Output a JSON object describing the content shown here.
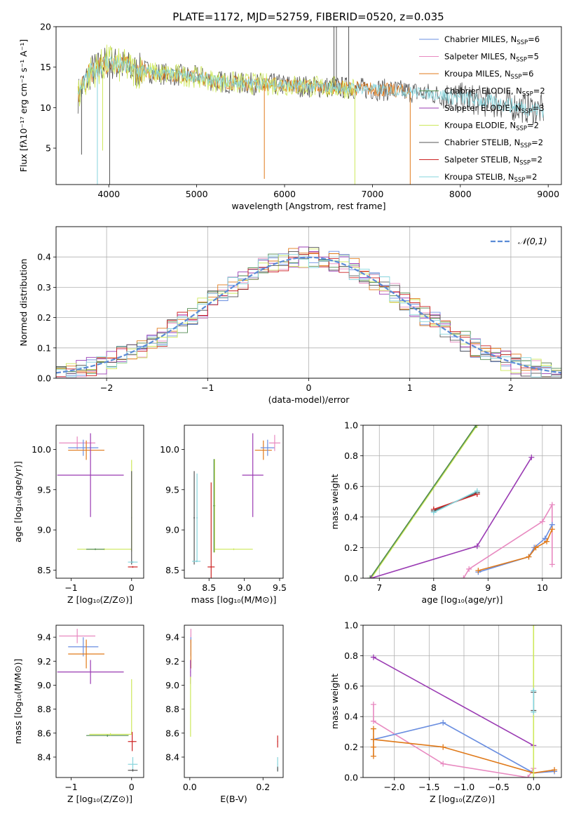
{
  "figure_title": "PLATE=1172, MJD=52759, FIBERID=0520, z=0.035",
  "colors": {
    "Chabrier MILES": "#6a8ee0",
    "Salpeter MILES": "#e889c0",
    "Kroupa MILES": "#e07a1a",
    "Chabrier ELODIE": "#4f8a4f",
    "Salpeter ELODIE": "#9a3bb3",
    "Kroupa ELODIE": "#cde85a",
    "Chabrier STELIB": "#555555",
    "Salpeter STELIB": "#cc2222",
    "Kroupa STELIB": "#86d4dc",
    "normal_curve": "#5b8bd6"
  },
  "chart_data": [
    {
      "id": "spectrum",
      "type": "line",
      "title": "PLATE=1172, MJD=52759, FIBERID=0520, z=0.035",
      "xlabel": "wavelength [Angstrom, rest frame]",
      "ylabel": "Flux [fλ10⁻¹⁷ erg cm⁻² s⁻¹ A⁻¹]",
      "xlim": [
        3400,
        9150
      ],
      "ylim": [
        0.5,
        20
      ],
      "xticks": [
        4000,
        5000,
        6000,
        7000,
        8000,
        9000
      ],
      "yticks": [
        5,
        10,
        15,
        20
      ],
      "legend_position": "top-right",
      "legend": [
        {
          "model": "Chabrier MILES",
          "label": "Chabrier MILES, N",
          "sub": "SSP",
          "tail": "=6"
        },
        {
          "model": "Salpeter MILES",
          "label": "Salpeter MILES, N",
          "sub": "SSP",
          "tail": "=5"
        },
        {
          "model": "Kroupa MILES",
          "label": "Kroupa MILES, N",
          "sub": "SSP",
          "tail": "=6"
        },
        {
          "model": "Chabrier ELODIE",
          "label": "Chabrier ELODIE, N",
          "sub": "SSP",
          "tail": "=2"
        },
        {
          "model": "Salpeter ELODIE",
          "label": "Salpeter ELODIE, N",
          "sub": "SSP",
          "tail": "=3"
        },
        {
          "model": "Kroupa ELODIE",
          "label": "Kroupa ELODIE, N",
          "sub": "SSP",
          "tail": "=2"
        },
        {
          "model": "Chabrier STELIB",
          "label": "Chabrier STELIB, N",
          "sub": "SSP",
          "tail": "=2"
        },
        {
          "model": "Salpeter STELIB",
          "label": "Salpeter STELIB, N",
          "sub": "SSP",
          "tail": "=2"
        },
        {
          "model": "Kroupa STELIB",
          "label": "Kroupa STELIB, N",
          "sub": "SSP",
          "tail": "=2"
        }
      ],
      "continuum": [
        [
          3650,
          11.5
        ],
        [
          3700,
          12.5
        ],
        [
          3800,
          14.5
        ],
        [
          3900,
          15.0
        ],
        [
          4000,
          15.8
        ],
        [
          4100,
          15.2
        ],
        [
          4200,
          15.0
        ],
        [
          4300,
          14.5
        ],
        [
          4400,
          14.6
        ],
        [
          4500,
          14.3
        ],
        [
          4600,
          14.2
        ],
        [
          4800,
          14.0
        ],
        [
          5000,
          13.8
        ],
        [
          5200,
          13.3
        ],
        [
          5500,
          13.0
        ],
        [
          5800,
          12.9
        ],
        [
          6000,
          12.8
        ],
        [
          6300,
          12.6
        ],
        [
          6600,
          12.5
        ],
        [
          7000,
          12.3
        ],
        [
          7400,
          12.0
        ],
        [
          7800,
          11.5
        ],
        [
          8200,
          10.9
        ],
        [
          8500,
          10.4
        ],
        [
          8900,
          9.7
        ]
      ],
      "spectrum_traces": [
        {
          "model": "Chabrier STELIB",
          "x_start": 3650,
          "x_end": 8950,
          "noise": 1.4
        },
        {
          "model": "Kroupa MILES",
          "x_start": 3650,
          "x_end": 7420,
          "noise": 0.9
        },
        {
          "model": "Kroupa ELODIE",
          "x_start": 3650,
          "x_end": 6800,
          "noise": 1.4
        },
        {
          "model": "Kroupa STELIB",
          "x_start": 3650,
          "x_end": 8950,
          "noise": 0.7
        }
      ],
      "absorption_features": [
        {
          "model": "Kroupa STELIB",
          "x": 3870,
          "y": 0.5
        },
        {
          "model": "Kroupa ELODIE",
          "x": 3930,
          "y": 4.7
        },
        {
          "model": "Chabrier STELIB",
          "x": 4010,
          "y": 0.5
        },
        {
          "model": "Kroupa MILES",
          "x": 5770,
          "y": 1.2
        },
        {
          "model": "Kroupa MILES",
          "x": 7430,
          "y": 0.5
        },
        {
          "model": "Kroupa ELODIE",
          "x": 6800,
          "y": 0.5
        },
        {
          "model": "Chabrier STELIB",
          "x": 3690,
          "y": 4.2
        }
      ],
      "emission_features": [
        {
          "model": "Chabrier STELIB",
          "x": 6562,
          "y": 20
        },
        {
          "model": "Chabrier STELIB",
          "x": 6590,
          "y": 20
        },
        {
          "model": "Chabrier STELIB",
          "x": 6730,
          "y": 20
        }
      ]
    },
    {
      "id": "residuals",
      "type": "line",
      "xlabel": "(data-model)/error",
      "ylabel": "Normed distribution",
      "xlim": [
        -2.5,
        2.5
      ],
      "ylim": [
        0,
        0.5
      ],
      "xticks": [
        -2,
        -1,
        0,
        1,
        2
      ],
      "yticks": [
        0.0,
        0.1,
        0.2,
        0.3,
        0.4
      ],
      "grid": true,
      "legend_position": "top-right",
      "legend_label": "𝒩(0,1)",
      "bin_width": 0.1,
      "bin_start": -2.5,
      "sigma": 1,
      "hist_jitter": 0.035
    },
    {
      "id": "age_vs_Z",
      "type": "scatter",
      "xlabel": "Z [log₁₀(Z/Z⊙)]",
      "ylabel": "age  [log₁₀(age/yr)]",
      "xlim": [
        -1.25,
        0.2
      ],
      "ylim": [
        8.4,
        10.3
      ],
      "xticks": [
        -1,
        0
      ],
      "yticks": [
        8.5,
        9.0,
        9.5,
        10.0
      ],
      "points": [
        {
          "model": "Salpeter MILES",
          "x": -0.9,
          "y": 10.08,
          "xerr": 0.3,
          "yerr": 0.08
        },
        {
          "model": "Chabrier MILES",
          "x": -0.8,
          "y": 10.02,
          "xerr": 0.25,
          "yerr": 0.1
        },
        {
          "model": "Kroupa MILES",
          "x": -0.75,
          "y": 9.99,
          "xerr": 0.3,
          "yerr": 0.12
        },
        {
          "model": "Salpeter ELODIE",
          "x": -0.68,
          "y": 9.68,
          "xerr": 0.55,
          "yerr": 0.52
        },
        {
          "model": "Kroupa ELODIE",
          "x": -0.45,
          "y": 8.76,
          "xerr": 0.45,
          "yerr": 0.01
        },
        {
          "model": "Chabrier ELODIE",
          "x": -0.6,
          "y": 8.76,
          "xerr": 0.15,
          "yerr": 0.01
        },
        {
          "model": "Kroupa ELODIE",
          "x": 0.0,
          "y": 9.3,
          "xerr": 0.005,
          "yerr": 0.57
        },
        {
          "model": "Chabrier STELIB",
          "x": 0.0,
          "y": 9.15,
          "xerr": 0.005,
          "yerr": 0.58
        },
        {
          "model": "Kroupa STELIB",
          "x": 0.02,
          "y": 8.6,
          "xerr": 0.08,
          "yerr": 0.01
        },
        {
          "model": "Salpeter STELIB",
          "x": 0.02,
          "y": 8.54,
          "xerr": 0.08,
          "yerr": 0.01
        }
      ]
    },
    {
      "id": "age_vs_mass",
      "type": "scatter",
      "xlabel": "mass [log₁₀(M/M⊙)]",
      "ylabel": "",
      "xlim": [
        8.15,
        9.55
      ],
      "ylim": [
        8.4,
        10.3
      ],
      "xticks": [
        8.5,
        9.0,
        9.5
      ],
      "yticks": [
        8.5,
        9.0,
        9.5,
        10.0
      ],
      "points": [
        {
          "model": "Kroupa STELIB",
          "x": 8.33,
          "y": 9.15,
          "xerr": 0.01,
          "yerr": 0.55
        },
        {
          "model": "Chabrier STELIB",
          "x": 8.29,
          "y": 9.15,
          "xerr": 0.01,
          "yerr": 0.58
        },
        {
          "model": "Kroupa STELIB",
          "x": 8.32,
          "y": 8.61,
          "xerr": 0.06,
          "yerr": 0.01
        },
        {
          "model": "Salpeter STELIB",
          "x": 8.53,
          "y": 8.54,
          "xerr": 0.05,
          "yerr": 1.05
        },
        {
          "model": "Kroupa ELODIE",
          "x": 8.58,
          "y": 9.3,
          "xerr": 0.01,
          "yerr": 0.58
        },
        {
          "model": "Chabrier ELODIE",
          "x": 8.57,
          "y": 9.3,
          "xerr": 0.01,
          "yerr": 0.58
        },
        {
          "model": "Kroupa ELODIE",
          "x": 8.85,
          "y": 8.76,
          "xerr": 0.27,
          "yerr": 0.01
        },
        {
          "model": "Salpeter ELODIE",
          "x": 9.12,
          "y": 9.68,
          "xerr": 0.15,
          "yerr": 0.52
        },
        {
          "model": "Kroupa MILES",
          "x": 9.27,
          "y": 9.99,
          "xerr": 0.12,
          "yerr": 0.12
        },
        {
          "model": "Chabrier MILES",
          "x": 9.33,
          "y": 10.02,
          "xerr": 0.1,
          "yerr": 0.1
        },
        {
          "model": "Salpeter MILES",
          "x": 9.43,
          "y": 10.08,
          "xerr": 0.08,
          "yerr": 0.1
        }
      ]
    },
    {
      "id": "weight_vs_age",
      "type": "line",
      "xlabel": "age  [log₁₀(age/yr)]",
      "ylabel": "mass weight",
      "xlim": [
        6.7,
        10.35
      ],
      "ylim": [
        0,
        1
      ],
      "xticks": [
        7,
        8,
        9,
        10
      ],
      "yticks": [
        0.0,
        0.2,
        0.4,
        0.6,
        0.8,
        1.0
      ],
      "grid": true,
      "series": [
        {
          "model": "Kroupa ELODIE",
          "x": [
            6.85,
            8.8
          ],
          "y": [
            0.0,
            1.0
          ]
        },
        {
          "model": "Chabrier ELODIE",
          "x": [
            6.83,
            8.78
          ],
          "y": [
            0.0,
            1.0
          ]
        },
        {
          "model": "Salpeter ELODIE",
          "x": [
            6.85,
            8.8,
            9.8
          ],
          "y": [
            0.0,
            0.21,
            0.79
          ]
        },
        {
          "model": "Chabrier STELIB",
          "x": [
            8.0,
            8.8
          ],
          "y": [
            0.44,
            0.56
          ]
        },
        {
          "model": "Salpeter STELIB",
          "x": [
            8.0,
            8.8
          ],
          "y": [
            0.45,
            0.55
          ]
        },
        {
          "model": "Kroupa STELIB",
          "x": [
            8.0,
            8.8
          ],
          "y": [
            0.43,
            0.57
          ]
        },
        {
          "model": "Salpeter MILES",
          "x": [
            8.55,
            8.65,
            10.0,
            10.18,
            10.18
          ],
          "y": [
            0.0,
            0.06,
            0.37,
            0.48,
            0.09
          ]
        },
        {
          "model": "Chabrier MILES",
          "x": [
            8.82,
            9.75,
            9.85,
            10.05,
            10.18
          ],
          "y": [
            0.04,
            0.14,
            0.2,
            0.26,
            0.35
          ]
        },
        {
          "model": "Kroupa MILES",
          "x": [
            8.82,
            9.75,
            9.88,
            10.08,
            10.18
          ],
          "y": [
            0.05,
            0.14,
            0.2,
            0.24,
            0.32
          ]
        }
      ]
    },
    {
      "id": "mass_vs_Z",
      "type": "scatter",
      "xlabel": "Z [log₁₀(Z/Z⊙)]",
      "ylabel": "mass [log₁₀(M/M⊙)]",
      "xlim": [
        -1.25,
        0.2
      ],
      "ylim": [
        8.23,
        9.5
      ],
      "xticks": [
        -1,
        0
      ],
      "yticks": [
        8.4,
        8.6,
        8.8,
        9.0,
        9.2,
        9.4
      ],
      "points": [
        {
          "model": "Salpeter MILES",
          "x": -0.9,
          "y": 9.41,
          "xerr": 0.3,
          "yerr": 0.06
        },
        {
          "model": "Chabrier MILES",
          "x": -0.8,
          "y": 9.32,
          "xerr": 0.25,
          "yerr": 0.08
        },
        {
          "model": "Kroupa MILES",
          "x": -0.75,
          "y": 9.26,
          "xerr": 0.3,
          "yerr": 0.12
        },
        {
          "model": "Salpeter ELODIE",
          "x": -0.68,
          "y": 9.11,
          "xerr": 0.55,
          "yerr": 0.1
        },
        {
          "model": "Chabrier ELODIE",
          "x": -0.4,
          "y": 8.58,
          "xerr": 0.35,
          "yerr": 0.01
        },
        {
          "model": "Kroupa ELODIE",
          "x": -0.35,
          "y": 8.59,
          "xerr": 0.35,
          "yerr": 0.01
        },
        {
          "model": "Kroupa ELODIE",
          "x": 0.0,
          "y": 8.82,
          "xerr": 0.005,
          "yerr": 0.23
        },
        {
          "model": "Salpeter STELIB",
          "x": 0.01,
          "y": 8.53,
          "xerr": 0.07,
          "yerr": 0.08
        },
        {
          "model": "Kroupa STELIB",
          "x": 0.02,
          "y": 8.34,
          "xerr": 0.08,
          "yerr": 0.06
        },
        {
          "model": "Chabrier STELIB",
          "x": 0.02,
          "y": 8.29,
          "xerr": 0.08,
          "yerr": 0.01
        }
      ]
    },
    {
      "id": "mass_vs_ebv",
      "type": "scatter",
      "xlabel": "E(B-V)",
      "ylabel": "",
      "xlim": [
        -0.015,
        0.255
      ],
      "ylim": [
        8.23,
        9.5
      ],
      "xticks": [
        0.0,
        0.2
      ],
      "yticks": [
        8.4,
        8.6,
        8.8,
        9.0,
        9.2,
        9.4
      ],
      "points": [
        {
          "model": "Salpeter MILES",
          "x": 0.003,
          "y": 9.41,
          "xerr": 0.001,
          "yerr": 0.06
        },
        {
          "model": "Chabrier MILES",
          "x": 0.003,
          "y": 9.32,
          "xerr": 0.001,
          "yerr": 0.08
        },
        {
          "model": "Kroupa MILES",
          "x": 0.003,
          "y": 9.26,
          "xerr": 0.001,
          "yerr": 0.12
        },
        {
          "model": "Salpeter ELODIE",
          "x": 0.002,
          "y": 9.11,
          "xerr": 0.001,
          "yerr": 0.1
        },
        {
          "model": "Kroupa ELODIE",
          "x": 0.002,
          "y": 8.82,
          "xerr": 0.001,
          "yerr": 0.25
        },
        {
          "model": "Salpeter STELIB",
          "x": 0.24,
          "y": 8.53,
          "xerr": 0.001,
          "yerr": 0.05
        },
        {
          "model": "Kroupa STELIB",
          "x": 0.24,
          "y": 8.34,
          "xerr": 0.001,
          "yerr": 0.06
        },
        {
          "model": "Chabrier STELIB",
          "x": 0.24,
          "y": 8.3,
          "xerr": 0.001,
          "yerr": 0.02
        }
      ]
    },
    {
      "id": "weight_vs_Z",
      "type": "line",
      "xlabel": "Z [log₁₀(Z/Z⊙)]",
      "ylabel": "mass weight",
      "xlim": [
        -2.45,
        0.4
      ],
      "ylim": [
        0,
        1
      ],
      "xticks": [
        -2.0,
        -1.5,
        -1.0,
        -0.5,
        0.0
      ],
      "yticks": [
        0.0,
        0.2,
        0.4,
        0.6,
        0.8,
        1.0
      ],
      "grid": true,
      "series": [
        {
          "model": "Salpeter ELODIE",
          "x": [
            -2.3,
            0.0
          ],
          "y": [
            0.79,
            0.21
          ]
        },
        {
          "model": "Salpeter MILES",
          "x": [
            -2.3,
            -2.3,
            -1.3,
            -0.08,
            0.0
          ],
          "y": [
            0.48,
            0.37,
            0.09,
            0.0,
            0.06
          ]
        },
        {
          "model": "Chabrier MILES",
          "x": [
            -2.3,
            -1.3,
            0.0,
            0.3
          ],
          "y": [
            0.25,
            0.36,
            0.03,
            0.04
          ]
        },
        {
          "model": "Kroupa MILES",
          "x": [
            -2.3,
            -2.3,
            -2.3,
            -2.3,
            -1.3,
            0.0,
            0.3
          ],
          "y": [
            0.32,
            0.14,
            0.2,
            0.25,
            0.2,
            0.03,
            0.05
          ]
        },
        {
          "model": "Kroupa ELODIE",
          "x": [
            0.0,
            0.0
          ],
          "y": [
            0.0,
            1.0
          ]
        },
        {
          "model": "Chabrier STELIB",
          "x": [
            0.0,
            0.0
          ],
          "y": [
            0.44,
            0.56
          ]
        },
        {
          "model": "Kroupa STELIB",
          "x": [
            0.0,
            0.0
          ],
          "y": [
            0.43,
            0.57
          ]
        }
      ]
    }
  ]
}
